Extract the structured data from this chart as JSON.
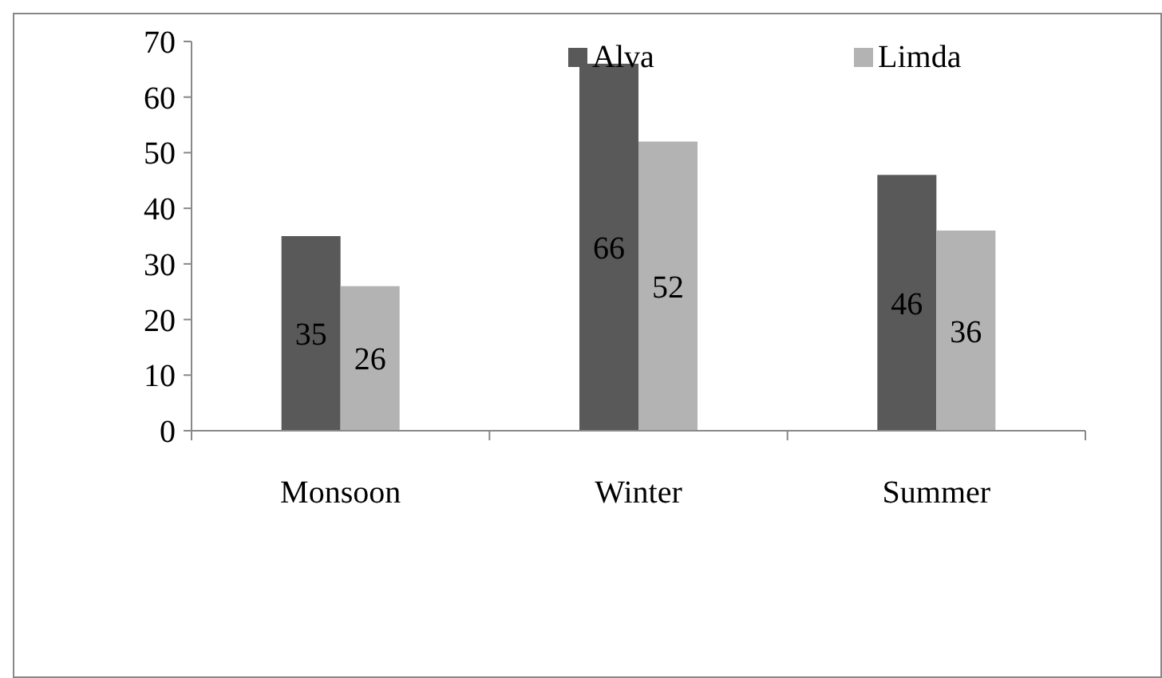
{
  "chart_data": {
    "type": "bar",
    "categories": [
      "Monsoon",
      "Winter",
      "Summer"
    ],
    "series": [
      {
        "name": "Alva",
        "color": "#595959",
        "values": [
          35,
          66,
          46
        ]
      },
      {
        "name": "Limda",
        "color": "#b3b3b3",
        "values": [
          26,
          52,
          36
        ]
      }
    ],
    "ylim": [
      0,
      70
    ],
    "yticks": [
      0,
      10,
      20,
      30,
      40,
      50,
      60,
      70
    ],
    "grid": false,
    "legend": "top",
    "data_labels": true
  }
}
